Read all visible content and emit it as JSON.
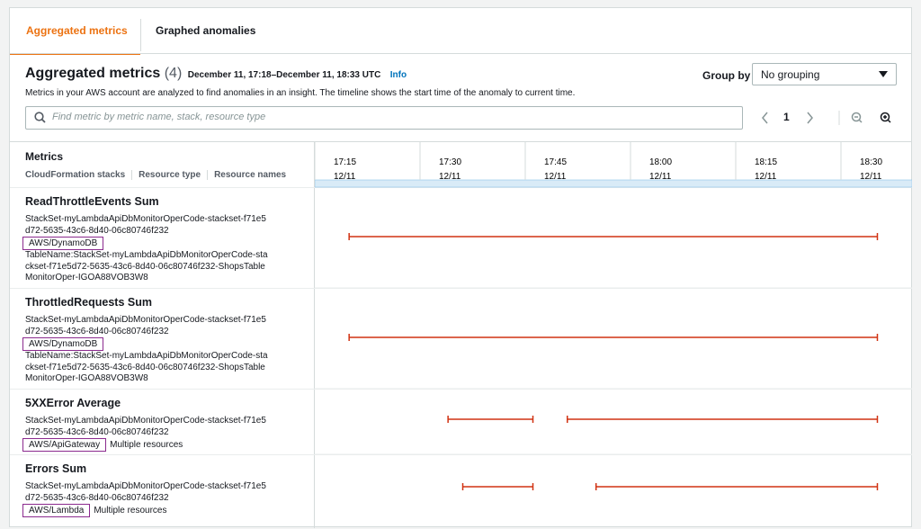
{
  "tabs": [
    "Aggregated metrics",
    "Graphed anomalies"
  ],
  "header": {
    "title": "Aggregated metrics",
    "count": "(4)",
    "range": "December 11, 17:18–December 11, 18:33 UTC",
    "info": "Info",
    "description": "Metrics in your AWS account are analyzed to find anomalies in an insight. The timeline shows the start time of the anomaly to current time.",
    "group_by_label": "Group by",
    "group_by_value": "No grouping",
    "search_placeholder": "Find metric by metric name, stack, resource type",
    "page": "1"
  },
  "table": {
    "column_title": "Metrics",
    "subcolumns": [
      "CloudFormation stacks",
      "Resource type",
      "Resource names"
    ],
    "timeline": {
      "xlim": [
        1033,
        1113
      ],
      "ticks": [
        {
          "value": 1035,
          "label": "17:15",
          "date": "12/11"
        },
        {
          "value": 1050,
          "label": "17:30",
          "date": "12/11"
        },
        {
          "value": 1065,
          "label": "17:45",
          "date": "12/11"
        },
        {
          "value": 1080,
          "label": "18:00",
          "date": "12/11"
        },
        {
          "value": 1095,
          "label": "18:15",
          "date": "12/11"
        },
        {
          "value": 1110,
          "label": "18:30",
          "date": "12/11"
        }
      ]
    },
    "rows": [
      {
        "title": "ReadThrottleEvents Sum",
        "stack": "StackSet-myLambdaApiDbMonitorOperCode-stackset-f71e5d72-5635-43c6-8d40-06c80746f232",
        "type": "AWS/DynamoDB",
        "resource": "TableName:StackSet-myLambdaApiDbMonitorOperCode-stackset-f71e5d72-5635-43c6-8d40-06c80746f232-ShopsTableMonitorOper-IGOA88VOB3W8",
        "spans": [
          {
            "start": 1037.2,
            "end": 1112.5
          }
        ]
      },
      {
        "title": "ThrottledRequests Sum",
        "stack": "StackSet-myLambdaApiDbMonitorOperCode-stackset-f71e5d72-5635-43c6-8d40-06c80746f232",
        "type": "AWS/DynamoDB",
        "resource": "TableName:StackSet-myLambdaApiDbMonitorOperCode-stackset-f71e5d72-5635-43c6-8d40-06c80746f232-ShopsTableMonitorOper-IGOA88VOB3W8",
        "spans": [
          {
            "start": 1037.2,
            "end": 1112.5
          }
        ]
      },
      {
        "title": "5XXError Average",
        "stack": "StackSet-myLambdaApiDbMonitorOperCode-stackset-f71e5d72-5635-43c6-8d40-06c80746f232",
        "type": "AWS/ApiGateway",
        "resource": "Multiple resources",
        "spans": [
          {
            "start": 1051.3,
            "end": 1063.4
          },
          {
            "start": 1068.3,
            "end": 1112.5
          }
        ]
      },
      {
        "title": "Errors Sum",
        "stack": "StackSet-myLambdaApiDbMonitorOperCode-stackset-f71e5d72-5635-43c6-8d40-06c80746f232",
        "type": "AWS/Lambda",
        "resource": "Multiple resources",
        "spans": [
          {
            "start": 1053.4,
            "end": 1063.4
          },
          {
            "start": 1072.4,
            "end": 1112.5
          }
        ]
      }
    ]
  }
}
